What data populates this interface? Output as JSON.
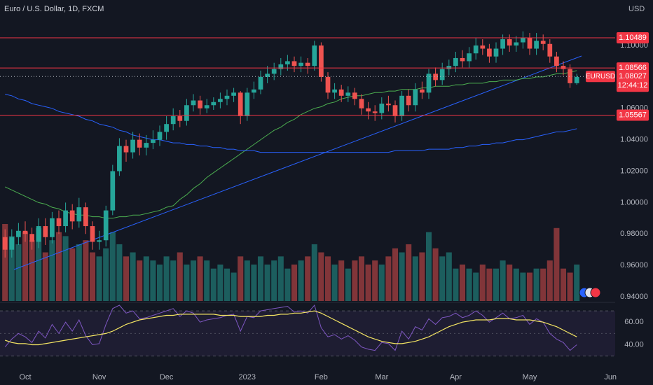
{
  "chart_data": {
    "type": "candlestick",
    "title": "Euro / U.S. Dollar, 1D, FXCM",
    "currency": "USD",
    "symbol": "EURUSD",
    "countdown": "12:44:12",
    "last_price": 1.08027,
    "up_color": "#26a69a",
    "down_color": "#ef5350",
    "grid": false,
    "categories": [
      null,
      null,
      null,
      "Oct",
      null,
      null,
      null,
      null,
      null,
      null,
      null,
      null,
      null,
      null,
      "Nov",
      null,
      null,
      null,
      null,
      null,
      null,
      null,
      null,
      null,
      "Dec",
      null,
      null,
      null,
      null,
      null,
      null,
      null,
      null,
      null,
      null,
      null,
      "2023",
      null,
      null,
      null,
      null,
      null,
      null,
      null,
      null,
      null,
      null,
      "Feb",
      null,
      null,
      null,
      null,
      null,
      null,
      null,
      null,
      "Mar",
      null,
      null,
      null,
      null,
      null,
      null,
      null,
      null,
      null,
      null,
      "Apr",
      null,
      null,
      null,
      null,
      null,
      null,
      null,
      null,
      null,
      null,
      "May",
      null,
      null,
      null,
      null,
      null,
      null,
      null,
      null,
      null,
      null,
      null,
      "Jun"
    ],
    "open": [
      0.978,
      0.97,
      0.978,
      0.982,
      0.98,
      0.975,
      0.985,
      0.978,
      0.99,
      0.985,
      0.995,
      0.988,
      0.997,
      0.985,
      0.975,
      0.976,
      0.995,
      1.02,
      1.036,
      1.032,
      1.04,
      1.035,
      1.038,
      1.04,
      1.045,
      1.05,
      1.055,
      1.052,
      1.062,
      1.065,
      1.06,
      1.062,
      1.064,
      1.066,
      1.068,
      1.07,
      1.055,
      1.07,
      1.072,
      1.08,
      1.082,
      1.085,
      1.088,
      1.09,
      1.087,
      1.089,
      1.087,
      1.1,
      1.08,
      1.07,
      1.072,
      1.068,
      1.07,
      1.066,
      1.06,
      1.058,
      1.057,
      1.063,
      1.062,
      1.055,
      1.068,
      1.062,
      1.072,
      1.07,
      1.082,
      1.078,
      1.085,
      1.087,
      1.092,
      1.09,
      1.095,
      1.1,
      1.098,
      1.093,
      1.098,
      1.104,
      1.1,
      1.102,
      1.105,
      1.098,
      1.103,
      1.101,
      1.093,
      1.087,
      1.085,
      1.076,
      null,
      null,
      null,
      null,
      null
    ],
    "high": [
      0.983,
      0.983,
      0.987,
      0.988,
      0.984,
      0.99,
      0.99,
      0.994,
      0.995,
      1.0,
      0.999,
      1.003,
      1.0,
      0.988,
      0.982,
      0.998,
      1.024,
      1.041,
      1.04,
      1.045,
      1.044,
      1.043,
      1.046,
      1.049,
      1.055,
      1.06,
      1.059,
      1.066,
      1.069,
      1.068,
      1.066,
      1.067,
      1.07,
      1.072,
      1.073,
      1.071,
      1.073,
      1.077,
      1.084,
      1.087,
      1.089,
      1.092,
      1.094,
      1.093,
      1.093,
      1.092,
      1.103,
      1.102,
      1.083,
      1.076,
      1.075,
      1.074,
      1.073,
      1.069,
      1.064,
      1.062,
      1.067,
      1.068,
      1.065,
      1.071,
      1.072,
      1.076,
      1.077,
      1.085,
      1.086,
      1.089,
      1.091,
      1.096,
      1.097,
      1.099,
      1.105,
      1.104,
      1.101,
      1.102,
      1.107,
      1.107,
      1.106,
      1.109,
      1.108,
      1.108,
      1.107,
      1.104,
      1.096,
      1.09,
      1.088,
      1.082,
      null,
      null,
      null,
      null,
      null
    ],
    "low": [
      0.965,
      0.965,
      0.973,
      0.975,
      0.97,
      0.971,
      0.973,
      0.974,
      0.98,
      0.981,
      0.983,
      0.984,
      0.98,
      0.97,
      0.97,
      0.972,
      0.992,
      1.017,
      1.026,
      1.028,
      1.03,
      1.03,
      1.034,
      1.036,
      1.04,
      1.046,
      1.048,
      1.049,
      1.058,
      1.056,
      1.057,
      1.059,
      1.06,
      1.062,
      1.064,
      1.05,
      1.052,
      1.066,
      1.069,
      1.076,
      1.078,
      1.081,
      1.084,
      1.083,
      1.083,
      1.082,
      1.084,
      1.077,
      1.066,
      1.066,
      1.064,
      1.064,
      1.062,
      1.056,
      1.053,
      1.052,
      1.053,
      1.058,
      1.051,
      1.052,
      1.058,
      1.058,
      1.066,
      1.066,
      1.074,
      1.075,
      1.081,
      1.083,
      1.086,
      1.086,
      1.091,
      1.094,
      1.089,
      1.089,
      1.094,
      1.096,
      1.096,
      1.098,
      1.094,
      1.094,
      1.097,
      1.089,
      1.083,
      1.081,
      1.073,
      1.075,
      null,
      null,
      null,
      null,
      null
    ],
    "close": [
      0.97,
      0.978,
      0.982,
      0.98,
      0.975,
      0.985,
      0.978,
      0.99,
      0.985,
      0.995,
      0.988,
      0.997,
      0.985,
      0.975,
      0.976,
      0.995,
      1.02,
      1.036,
      1.032,
      1.04,
      1.035,
      1.038,
      1.04,
      1.045,
      1.05,
      1.055,
      1.052,
      1.062,
      1.065,
      1.06,
      1.062,
      1.064,
      1.066,
      1.068,
      1.07,
      1.055,
      1.07,
      1.072,
      1.08,
      1.082,
      1.085,
      1.088,
      1.09,
      1.087,
      1.089,
      1.087,
      1.1,
      1.08,
      1.07,
      1.072,
      1.068,
      1.07,
      1.066,
      1.06,
      1.058,
      1.057,
      1.063,
      1.062,
      1.055,
      1.068,
      1.062,
      1.072,
      1.07,
      1.082,
      1.078,
      1.085,
      1.087,
      1.092,
      1.09,
      1.095,
      1.1,
      1.098,
      1.093,
      1.098,
      1.104,
      1.1,
      1.102,
      1.105,
      1.098,
      1.103,
      1.101,
      1.093,
      1.087,
      1.085,
      1.076,
      1.08,
      null,
      null,
      null,
      null,
      null
    ],
    "ylim": [
      0.93733,
      1.12897
    ],
    "yticks": [
      {
        "value": 0.94,
        "label": "0.94000"
      },
      {
        "value": 0.96,
        "label": "0.96000"
      },
      {
        "value": 0.98,
        "label": "0.98000"
      },
      {
        "value": 1.0,
        "label": "1.00000"
      },
      {
        "value": 1.02,
        "label": "1.02000"
      },
      {
        "value": 1.04,
        "label": "1.04000"
      },
      {
        "value": 1.06,
        "label": "1.06000"
      },
      {
        "value": 1.1,
        "label": "1.10000"
      }
    ],
    "levels": {
      "color": "#f23645",
      "values": [
        1.10489,
        1.08566,
        1.05567
      ]
    },
    "moving_averages": [
      {
        "color": "#4caf50",
        "values": [
          1.01,
          1.008,
          1.006,
          1.004,
          1.002,
          1.0,
          0.999,
          0.997,
          0.996,
          0.994,
          0.993,
          0.992,
          0.992,
          0.991,
          0.991,
          0.99,
          0.99,
          0.991,
          0.991,
          0.992,
          0.992,
          0.993,
          0.994,
          0.995,
          0.997,
          0.998,
          1.002,
          1.005,
          1.009,
          1.012,
          1.016,
          1.019,
          1.022,
          1.025,
          1.028,
          1.031,
          1.034,
          1.037,
          1.04,
          1.043,
          1.046,
          1.048,
          1.051,
          1.053,
          1.056,
          1.058,
          1.06,
          1.061,
          1.063,
          1.064,
          1.066,
          1.067,
          1.068,
          1.068,
          1.069,
          1.07,
          1.07,
          1.071,
          1.071,
          1.072,
          1.072,
          1.072,
          1.073,
          1.073,
          1.074,
          1.074,
          1.074,
          1.075,
          1.075,
          1.076,
          1.076,
          1.076,
          1.077,
          1.077,
          1.078,
          1.078,
          1.078,
          1.079,
          1.079,
          1.08,
          1.08,
          1.081,
          1.082,
          1.082,
          1.083,
          1.084,
          null,
          null,
          null,
          null,
          null
        ]
      },
      {
        "color": "#2962ff",
        "values": [
          1.069,
          1.068,
          1.066,
          1.065,
          1.063,
          1.062,
          1.061,
          1.06,
          1.058,
          1.057,
          1.056,
          1.055,
          1.053,
          1.052,
          1.05,
          1.049,
          1.048,
          1.046,
          1.045,
          1.043,
          1.042,
          1.041,
          1.04,
          1.04,
          1.039,
          1.038,
          1.038,
          1.037,
          1.037,
          1.036,
          1.036,
          1.035,
          1.035,
          1.034,
          1.034,
          1.033,
          1.033,
          1.033,
          1.032,
          1.032,
          1.032,
          1.032,
          1.032,
          1.032,
          1.032,
          1.032,
          1.032,
          1.032,
          1.032,
          1.032,
          1.032,
          1.032,
          1.032,
          1.032,
          1.032,
          1.032,
          1.032,
          1.032,
          1.033,
          1.033,
          1.033,
          1.033,
          1.033,
          1.034,
          1.034,
          1.034,
          1.034,
          1.035,
          1.035,
          1.036,
          1.036,
          1.037,
          1.037,
          1.038,
          1.038,
          1.039,
          1.04,
          1.04,
          1.041,
          1.042,
          1.043,
          1.044,
          1.045,
          1.045,
          1.046,
          1.047,
          null,
          null,
          null,
          null,
          null
        ]
      }
    ],
    "volume": {
      "values": [
        95,
        80,
        70,
        85,
        75,
        90,
        60,
        75,
        85,
        80,
        65,
        70,
        75,
        60,
        55,
        65,
        85,
        70,
        55,
        60,
        50,
        55,
        50,
        45,
        55,
        50,
        60,
        45,
        50,
        55,
        50,
        40,
        45,
        40,
        35,
        55,
        50,
        45,
        55,
        45,
        50,
        55,
        40,
        45,
        50,
        55,
        70,
        60,
        55,
        45,
        50,
        40,
        50,
        55,
        45,
        50,
        45,
        55,
        65,
        60,
        70,
        55,
        60,
        85,
        65,
        55,
        60,
        40,
        45,
        40,
        35,
        45,
        40,
        40,
        50,
        45,
        40,
        35,
        35,
        40,
        40,
        50,
        90,
        40,
        35,
        45,
        null,
        null,
        null,
        null,
        null
      ]
    },
    "rsi": {
      "color": "#7e57c2",
      "ma_color": "#f5e663",
      "ylim": [
        18,
        75
      ],
      "yticks": [
        {
          "value": 60,
          "label": "60.00"
        },
        {
          "value": 40,
          "label": "40.00"
        }
      ],
      "band": [
        30,
        70
      ],
      "midline": 50,
      "values": [
        38,
        45,
        50,
        47,
        42,
        52,
        46,
        58,
        50,
        60,
        52,
        62,
        48,
        40,
        41,
        58,
        72,
        75,
        68,
        70,
        63,
        64,
        66,
        68,
        70,
        72,
        65,
        70,
        68,
        60,
        62,
        63,
        64,
        66,
        67,
        52,
        65,
        64,
        70,
        71,
        72,
        73,
        74,
        69,
        70,
        68,
        75,
        55,
        47,
        49,
        45,
        48,
        44,
        38,
        36,
        35,
        42,
        41,
        35,
        52,
        45,
        56,
        53,
        63,
        58,
        64,
        65,
        68,
        64,
        66,
        70,
        66,
        60,
        64,
        68,
        63,
        64,
        66,
        58,
        63,
        60,
        50,
        45,
        42,
        35,
        40,
        null,
        null,
        null,
        null,
        null
      ],
      "ma": [
        44,
        42,
        41,
        41,
        40,
        40,
        41,
        42,
        43,
        44,
        45,
        46,
        47,
        48,
        49,
        50,
        52,
        55,
        58,
        60,
        62,
        63,
        64,
        65,
        66,
        66,
        67,
        67,
        67,
        67,
        67,
        67,
        66,
        66,
        66,
        65,
        65,
        65,
        65,
        66,
        66,
        67,
        67,
        68,
        68,
        69,
        70,
        68,
        65,
        62,
        59,
        56,
        53,
        50,
        47,
        45,
        43,
        42,
        41,
        41,
        42,
        43,
        45,
        47,
        50,
        53,
        56,
        58,
        60,
        61,
        62,
        62,
        62,
        63,
        63,
        63,
        62,
        62,
        62,
        61,
        60,
        58,
        56,
        53,
        50,
        47,
        null,
        null,
        null,
        null,
        null
      ]
    }
  }
}
